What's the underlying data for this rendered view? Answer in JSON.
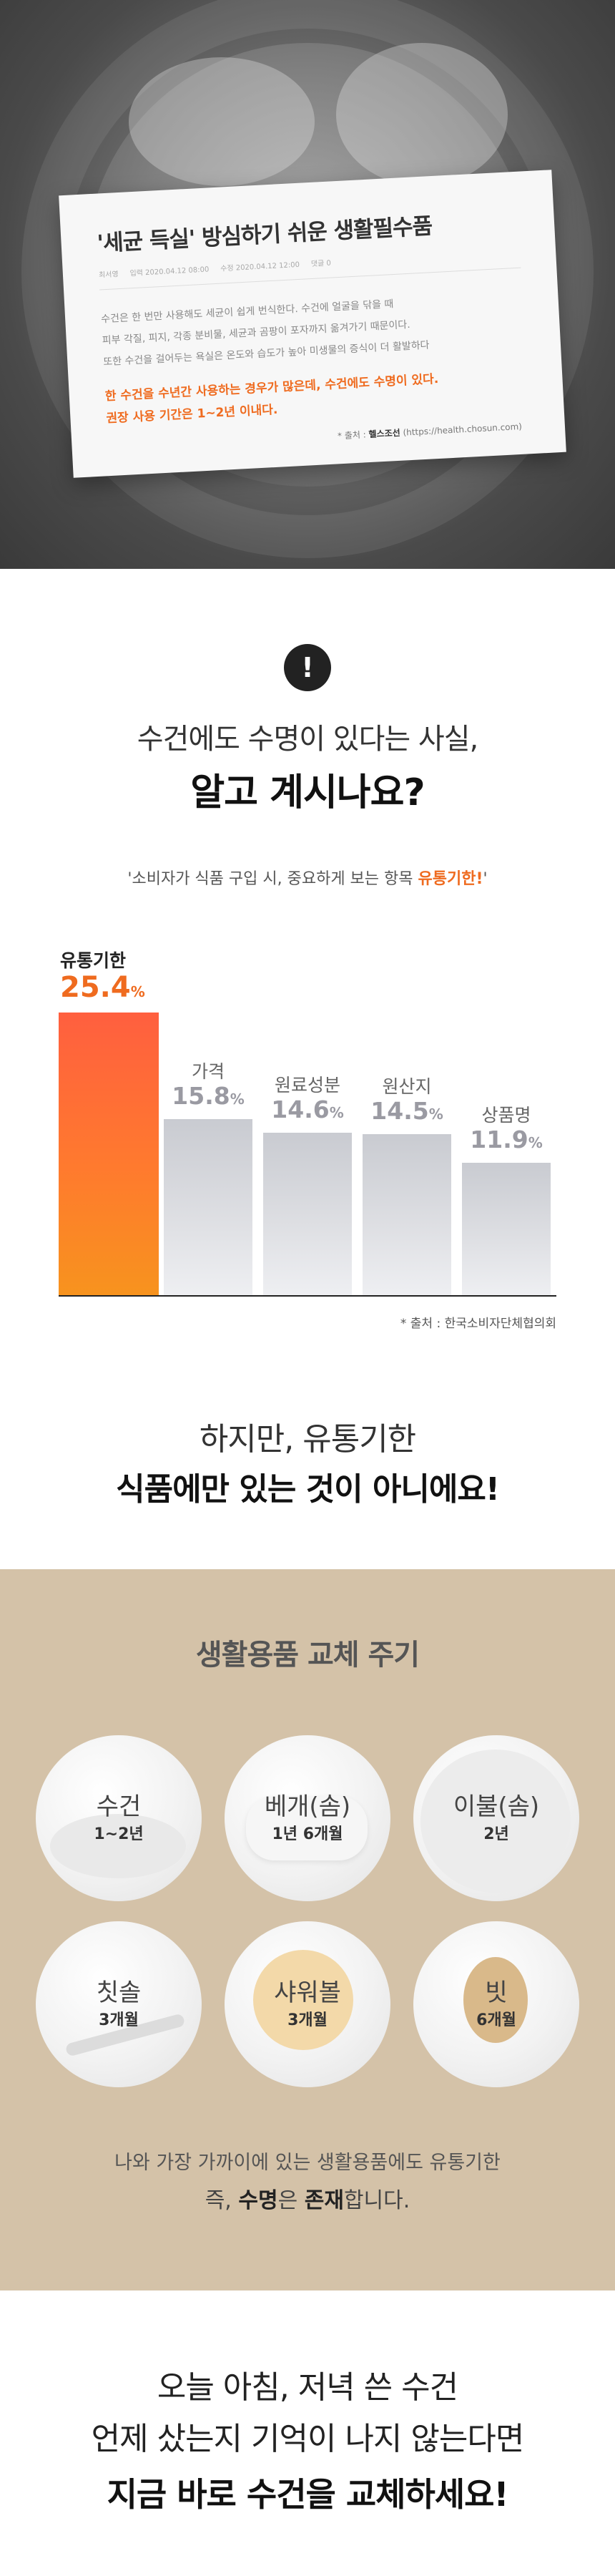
{
  "hero": {
    "article_title": "'세균 득실' 방심하기 쉬운 생활필수품",
    "meta": {
      "author": "최서영",
      "published": "입력 2020.04.12 08:00",
      "updated": "수정 2020.04.12 12:00",
      "comments": "댓글 0"
    },
    "body_lines": [
      "수건은 한 번만 사용해도 세균이 쉽게 번식한다. 수건에 얼굴을 닦을 때",
      "피부 각질, 피지, 각종 분비물, 세균과 곰팡이 포자까지 옮겨가기 때문이다.",
      "또한 수건을 걸어두는 욕실은 온도와 습도가 높아 미생물의 증식이 더 활발하다"
    ],
    "highlight_lines": [
      "한 수건을 수년간 사용하는 경우가 많은데, 수건에도 수명이 있다.",
      "권장 사용 기간은 1~2년 이내다."
    ],
    "source_prefix": "* 출처 : ",
    "source_name": "헬스조선",
    "source_url": "(https://health.chosun.com)"
  },
  "survey": {
    "icon": "exclamation-icon",
    "question_line1": "수건에도 수명이 있다는 사실,",
    "question_line2": "알고 계시나요?",
    "quote_prefix": "'소비자가 식품 구입 시, 중요하게 보는 항목 ",
    "quote_highlight": "유통기한!",
    "quote_suffix": "'",
    "source": "* 출처 : 한국소비자단체협의회"
  },
  "chart_data": {
    "type": "bar",
    "categories": [
      "유통기한",
      "가격",
      "원료성분",
      "원산지",
      "상품명"
    ],
    "values": [
      25.4,
      15.8,
      14.6,
      14.5,
      11.9
    ],
    "value_labels": [
      "25.4",
      "15.8",
      "14.6",
      "14.5",
      "11.9"
    ],
    "unit": "%",
    "title": "",
    "xlabel": "",
    "ylabel": "",
    "ylim": [
      0,
      25.4
    ],
    "grid": false,
    "legend": "none",
    "colors": {
      "highlight_top": "#ff5f3f",
      "highlight_bottom": "#f7931e",
      "other": "#d3d5da"
    }
  },
  "transition": {
    "line1": "하지만, 유통기한",
    "line2": "식품에만 있는 것이 아니에요!"
  },
  "cycle": {
    "title": "생활용품 교체 주기",
    "background": "#d4c2a8",
    "items": [
      {
        "name": "수건",
        "period": "1~2년",
        "icon": "towel-icon"
      },
      {
        "name": "베개(솜)",
        "period": "1년 6개월",
        "icon": "pillow-icon"
      },
      {
        "name": "이불(솜)",
        "period": "2년",
        "icon": "blanket-icon"
      },
      {
        "name": "칫솔",
        "period": "3개월",
        "icon": "toothbrush-icon"
      },
      {
        "name": "샤워볼",
        "period": "3개월",
        "icon": "shower-ball-icon"
      },
      {
        "name": "빗",
        "period": "6개월",
        "icon": "comb-icon"
      }
    ],
    "note_line1": "나와 가장 가까이에 있는 생활용품에도 유통기한",
    "note_line2_prefix": "즉, ",
    "note_line2_bold1": "수명",
    "note_line2_mid": "은 ",
    "note_line2_bold2": "존재",
    "note_line2_suffix": "합니다."
  },
  "final": {
    "line1": "오늘 아침, 저녁 쓴 수건",
    "line2": "언제 샀는지 기억이 나지 않는다면",
    "line3": "지금 바로 수건을 교체하세요!"
  },
  "colors": {
    "accent": "#ef6b1f",
    "dark": "#222222"
  }
}
